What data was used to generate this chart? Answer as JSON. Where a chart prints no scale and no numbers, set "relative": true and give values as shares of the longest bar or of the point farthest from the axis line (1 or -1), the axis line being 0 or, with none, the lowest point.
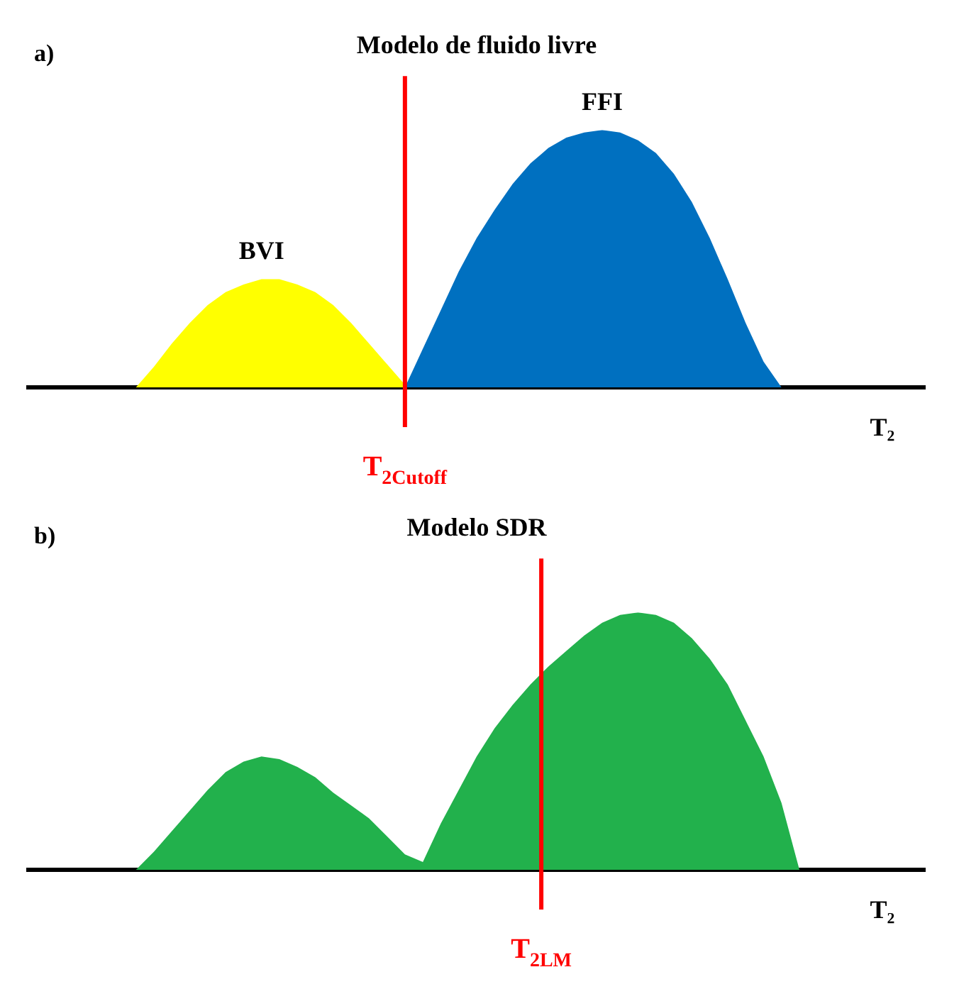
{
  "chart_data": [
    {
      "type": "area",
      "title": "Modelo de fluido livre",
      "xlabel": "T₂",
      "annotations": [
        "a)",
        "T$_{2Cutoff}$"
      ],
      "relative": true,
      "categories": [
        null,
        null,
        null,
        null,
        null,
        null,
        null,
        null,
        null,
        null,
        null,
        null,
        null,
        null,
        null,
        null,
        null,
        null,
        null,
        null,
        null,
        null,
        null,
        null,
        null,
        null,
        null,
        null,
        null,
        null,
        null,
        null,
        null,
        null,
        null,
        null,
        null,
        null,
        null,
        null,
        null,
        null,
        null,
        null,
        null,
        null,
        null,
        null,
        null,
        null,
        null
      ],
      "series": [
        {
          "name": "BVI",
          "color": "#ffff00",
          "values": [
            null,
            null,
            null,
            null,
            null,
            null,
            0,
            0.08,
            0.17,
            0.25,
            0.32,
            0.37,
            0.4,
            0.42,
            0.42,
            0.4,
            0.37,
            0.32,
            0.25,
            0.17,
            0.09,
            0.01,
            null,
            null,
            null,
            null,
            null,
            null,
            null,
            null,
            null,
            null,
            null,
            null,
            null,
            null,
            null,
            null,
            null,
            null,
            null,
            null,
            null,
            null,
            null,
            null,
            null,
            null,
            null,
            null,
            null
          ]
        },
        {
          "name": "FFI",
          "color": "#0070c0",
          "values": [
            null,
            null,
            null,
            null,
            null,
            null,
            null,
            null,
            null,
            null,
            null,
            null,
            null,
            null,
            null,
            null,
            null,
            null,
            null,
            null,
            null,
            0,
            0.15,
            0.3,
            0.45,
            0.58,
            0.69,
            0.79,
            0.87,
            0.93,
            0.97,
            0.99,
            1,
            0.99,
            0.96,
            0.91,
            0.83,
            0.72,
            0.58,
            0.42,
            0.25,
            0.1,
            0,
            null,
            null,
            null,
            null,
            null,
            null,
            null,
            null
          ]
        }
      ]
    },
    {
      "type": "area",
      "title": "Modelo SDR",
      "xlabel": "T₂",
      "annotations": [
        "b)",
        "T$_{2LM}$"
      ],
      "relative": true,
      "categories": [
        null,
        null,
        null,
        null,
        null,
        null,
        null,
        null,
        null,
        null,
        null,
        null,
        null,
        null,
        null,
        null,
        null,
        null,
        null,
        null,
        null,
        null,
        null,
        null,
        null,
        null,
        null,
        null,
        null,
        null,
        null,
        null,
        null,
        null,
        null,
        null,
        null,
        null,
        null,
        null,
        null,
        null,
        null,
        null,
        null,
        null,
        null,
        null,
        null,
        null,
        null
      ],
      "series": [
        {
          "color": "#22b14c",
          "values": [
            null,
            null,
            null,
            null,
            null,
            null,
            0,
            0.07,
            0.15,
            0.23,
            0.31,
            0.38,
            0.42,
            0.44,
            0.43,
            0.4,
            0.36,
            0.3,
            0.25,
            0.2,
            0.13,
            0.06,
            0.03,
            0.18,
            0.31,
            0.44,
            0.55,
            0.64,
            0.72,
            0.79,
            0.85,
            0.91,
            0.96,
            0.99,
            1,
            0.99,
            0.96,
            0.9,
            0.82,
            0.72,
            0.58,
            0.44,
            0.26,
            0,
            null,
            null,
            null,
            null,
            null,
            null,
            null
          ]
        }
      ]
    }
  ]
}
